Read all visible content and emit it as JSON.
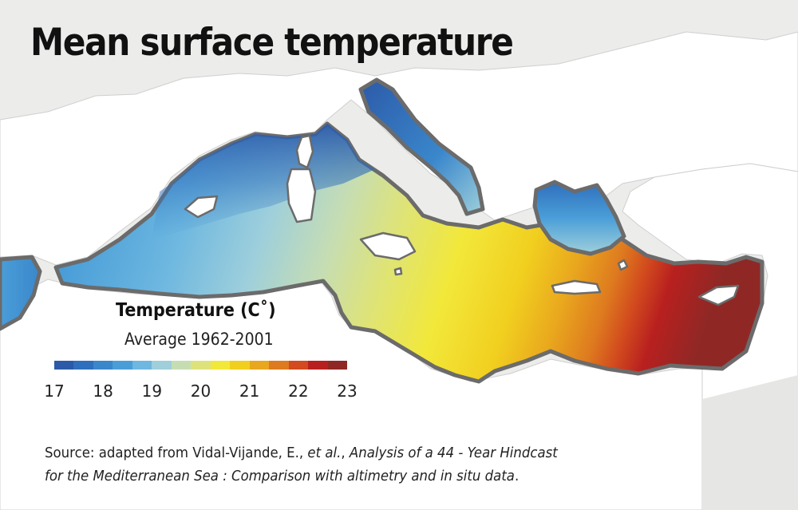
{
  "title": "Mean surface temperature",
  "legend": {
    "title": "Temperature (C˚)",
    "subtitle": "Average 1962-2001",
    "ticks": [
      "17",
      "18",
      "19",
      "20",
      "21",
      "22",
      "23"
    ],
    "colors": [
      "#2c5aa8",
      "#2f6fbd",
      "#3a87cc",
      "#4a9ed8",
      "#6db7e0",
      "#9ecfdb",
      "#c6ddb3",
      "#dde37a",
      "#f2e83a",
      "#f1cf1f",
      "#e9a71e",
      "#de7a1f",
      "#d24a1e",
      "#b8201f",
      "#8f2825"
    ]
  },
  "source": {
    "line1_plain": "Source: adapted from Vidal-Vijande, E., ",
    "line1_em1": "et al.",
    "line1_mid": ", ",
    "line1_em2": "Analysis of a 44 - Year Hindcast",
    "line2_em": "for the Mediterranean Sea : Comparison with altimetry and in situ data",
    "line2_end": "."
  },
  "map": {
    "sea_region": "Mediterranean Sea",
    "land_color": "#ffffff",
    "background_color": "#ececea",
    "coast_color": "#6b6b6b"
  }
}
